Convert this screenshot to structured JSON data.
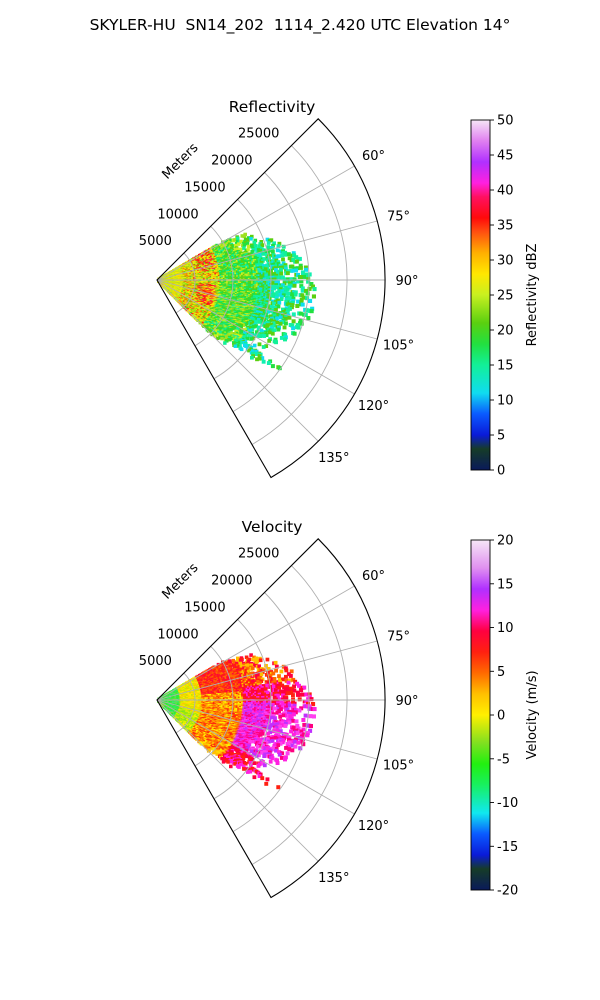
{
  "title": "SKYLER-HU  SN14_202  1114_2.420 UTC Elevation 14°",
  "range_units": "Meters",
  "chart_data": [
    {
      "type": "polar-sector-ppi",
      "title": "Reflectivity",
      "theta_range_deg": [
        45,
        150
      ],
      "theta_ticks": [
        "60°",
        "75°",
        "90°",
        "105°",
        "120°",
        "135°"
      ],
      "r_max_m": 30000,
      "r_ticks": [
        "5000",
        "10000",
        "15000",
        "20000",
        "25000"
      ],
      "colorbar": {
        "label": "Reflectivity dBZ",
        "min": 0,
        "max": 50,
        "ticks": [
          "0",
          "5",
          "10",
          "15",
          "20",
          "25",
          "30",
          "35",
          "40",
          "45",
          "50"
        ]
      },
      "echo_extent_deg": [
        60,
        135
      ],
      "echo_extent_m": [
        0,
        22000
      ]
    },
    {
      "type": "polar-sector-ppi",
      "title": "Velocity",
      "theta_range_deg": [
        45,
        150
      ],
      "theta_ticks": [
        "60°",
        "75°",
        "90°",
        "105°",
        "120°",
        "135°"
      ],
      "r_max_m": 30000,
      "r_ticks": [
        "5000",
        "10000",
        "15000",
        "20000",
        "25000"
      ],
      "colorbar": {
        "label": "Velocity (m/s)",
        "min": -20,
        "max": 20,
        "ticks": [
          "-20",
          "-15",
          "-10",
          "-5",
          "0",
          "5",
          "10",
          "15",
          "20"
        ]
      },
      "echo_extent_deg": [
        60,
        135
      ],
      "echo_extent_m": [
        0,
        22000
      ]
    }
  ]
}
